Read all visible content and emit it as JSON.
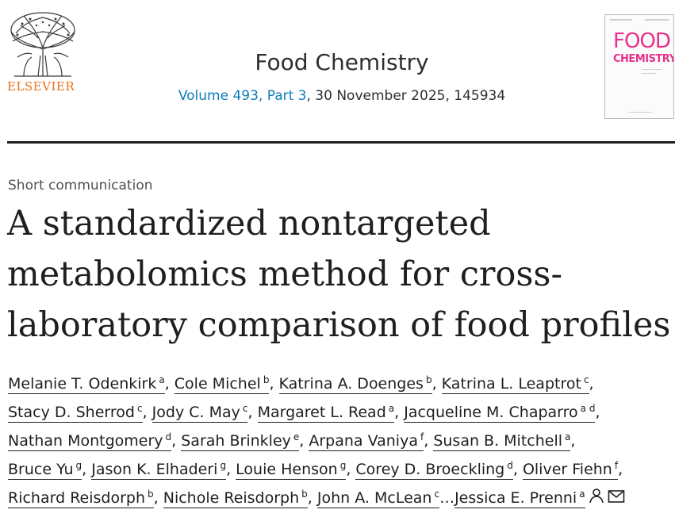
{
  "publisher": {
    "name": "ELSEVIER",
    "logo_icon": "elsevier-tree-logo"
  },
  "journal": {
    "title": "Food Chemistry",
    "issue_link": "Volume 493, Part 3",
    "issue_rest": ", 30 November 2025, 145934",
    "cover": {
      "word1": "FOOD",
      "word2": "CHEMISTRY",
      "color": "#e8318c"
    }
  },
  "article": {
    "type": "Short communication",
    "title_lines": [
      "A standardized nontargeted",
      "metabolomics method for cross-",
      "laboratory comparison of food profiles"
    ]
  },
  "authors": {
    "lines": [
      [
        {
          "name": "Melanie T. Odenkirk",
          "aff": "a"
        },
        {
          "name": "Cole Michel",
          "aff": "b"
        },
        {
          "name": "Katrina A. Doenges",
          "aff": "b"
        },
        {
          "name": "Katrina L. Leaptrot",
          "aff": "c"
        }
      ],
      [
        {
          "name": "Stacy D. Sherrod",
          "aff": "c"
        },
        {
          "name": "Jody C. May",
          "aff": "c"
        },
        {
          "name": "Margaret L. Read",
          "aff": "a"
        },
        {
          "name": "Jacqueline M. Chaparro",
          "aff": "a d"
        }
      ],
      [
        {
          "name": "Nathan Montgomery",
          "aff": "d"
        },
        {
          "name": "Sarah Brinkley",
          "aff": "e"
        },
        {
          "name": "Arpana Vaniya",
          "aff": "f"
        },
        {
          "name": "Susan B. Mitchell",
          "aff": "a"
        }
      ],
      [
        {
          "name": "Bruce Yu",
          "aff": "g"
        },
        {
          "name": "Jason K. Elhaderi",
          "aff": "g"
        },
        {
          "name": "Louie Henson",
          "aff": "g"
        },
        {
          "name": "Corey D. Broeckling",
          "aff": "d"
        },
        {
          "name": "Oliver Fiehn",
          "aff": "f"
        }
      ],
      [
        {
          "name": "Richard Reisdorph",
          "aff": "b"
        },
        {
          "name": "Nichole Reisdorph",
          "aff": "b"
        },
        {
          "name": "John A. McLean",
          "aff": "c"
        }
      ]
    ],
    "ellipsis": "…",
    "last": {
      "name": "Jessica E. Prenni",
      "aff": "a"
    },
    "separator": ", ",
    "icons": [
      "person-icon",
      "envelope-icon"
    ]
  }
}
